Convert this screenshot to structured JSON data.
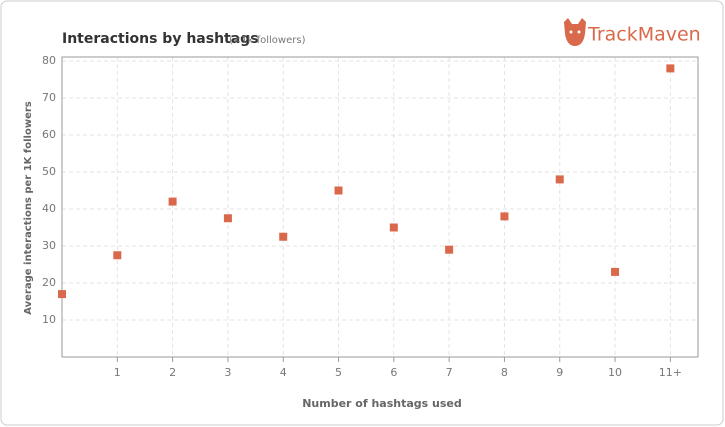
{
  "chart_data": {
    "type": "scatter",
    "title": "Interactions by hashtags",
    "subtitle": "(<1k followers)",
    "brand": "TrackMaven",
    "x_label": "Number of hashtags used",
    "y_label": "Average interactions per 1K followers",
    "categories": [
      null,
      "1",
      "2",
      "3",
      "4",
      "5",
      "6",
      "7",
      "8",
      "9",
      "10",
      "11+"
    ],
    "values": [
      17,
      27.5,
      42,
      37.5,
      32.5,
      45,
      35,
      29,
      38,
      48,
      23,
      78
    ],
    "color": "#d9694a",
    "ylim": [
      0,
      80
    ],
    "yticks": [
      10,
      20,
      30,
      40,
      50,
      60,
      70,
      80
    ],
    "grid": true
  }
}
